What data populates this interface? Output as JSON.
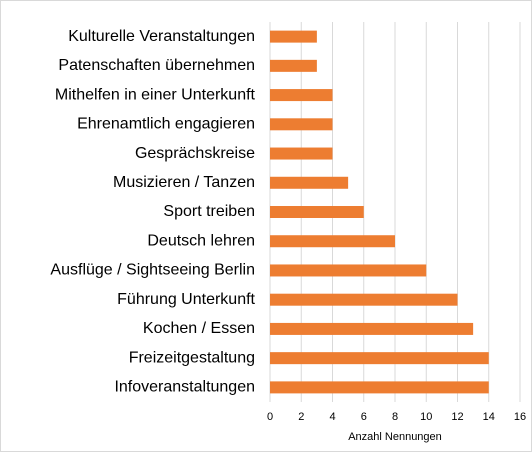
{
  "chart_data": {
    "type": "bar",
    "orientation": "horizontal",
    "categories": [
      "Kulturelle Veranstaltungen",
      "Patenschaften übernehmen",
      "Mithelfen in einer Unterkunft",
      "Ehrenamtlich engagieren",
      "Gesprächskreise",
      "Musizieren / Tanzen",
      "Sport treiben",
      "Deutsch lehren",
      "Ausflüge / Sightseeing Berlin",
      "Führung Unterkunft",
      "Kochen / Essen",
      "Freizeitgestaltung",
      "Infoveranstaltungen"
    ],
    "values": [
      3,
      3,
      4,
      4,
      4,
      5,
      6,
      8,
      10,
      12,
      13,
      14,
      14
    ],
    "color": "#ed7d31",
    "xlabel": "Anzahl Nennungen",
    "xlim": [
      0,
      16
    ],
    "xticks": [
      0,
      2,
      4,
      6,
      8,
      10,
      12,
      14,
      16
    ],
    "grid": true
  }
}
